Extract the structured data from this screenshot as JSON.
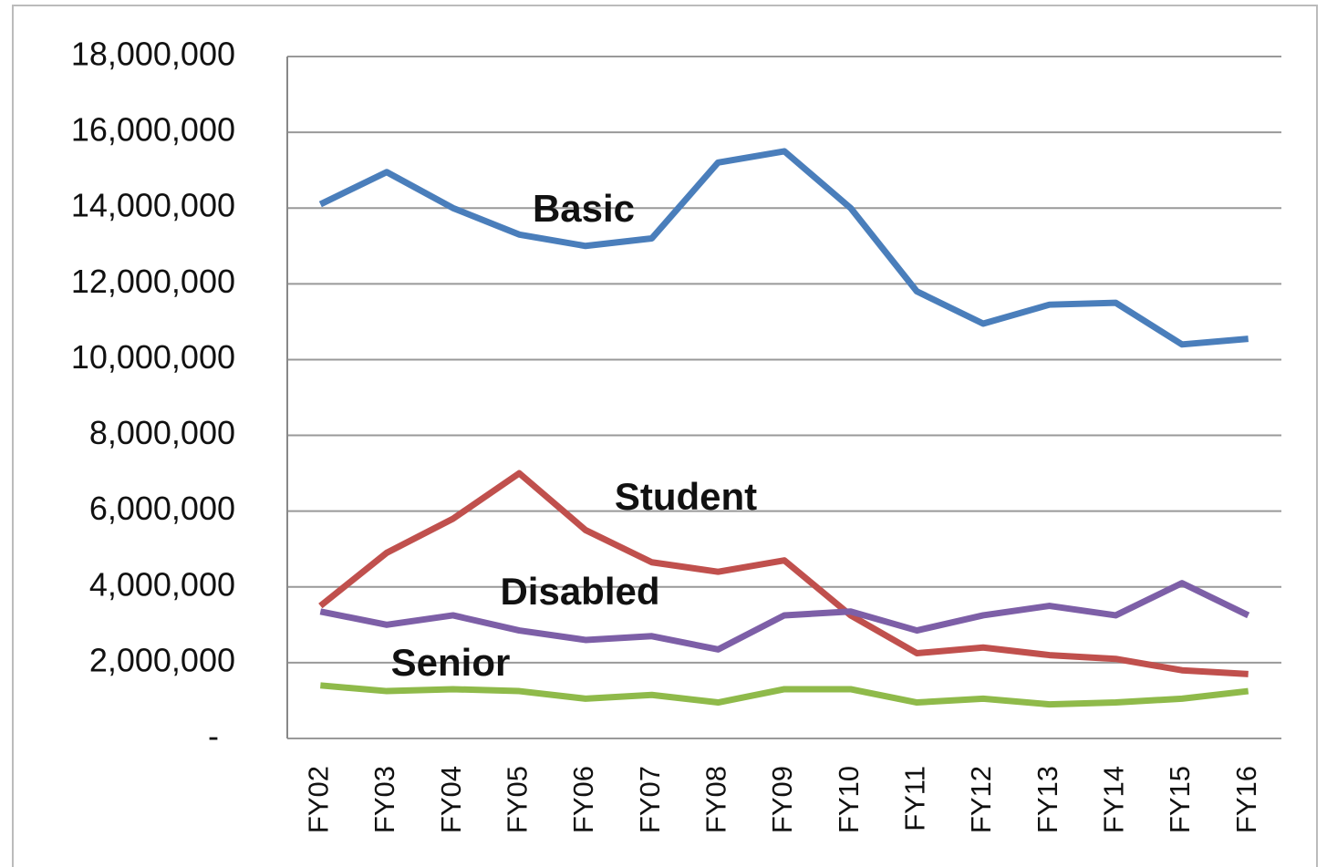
{
  "chart_data": {
    "type": "line",
    "categories": [
      "FY02",
      "FY03",
      "FY04",
      "FY05",
      "FY06",
      "FY07",
      "FY08",
      "FY09",
      "FY10",
      "FY11",
      "FY12",
      "FY13",
      "FY14",
      "FY15",
      "FY16"
    ],
    "series": [
      {
        "name": "Basic",
        "color": "#4a7ebb",
        "values": [
          14100000,
          14950000,
          14000000,
          13300000,
          13000000,
          13200000,
          15200000,
          15500000,
          14000000,
          11800000,
          10950000,
          11450000,
          11500000,
          10400000,
          10550000
        ]
      },
      {
        "name": "Student",
        "color": "#c0504d",
        "values": [
          3500000,
          4900000,
          5800000,
          7000000,
          5500000,
          4650000,
          4400000,
          4700000,
          3250000,
          2250000,
          2400000,
          2200000,
          2100000,
          1800000,
          1700000
        ]
      },
      {
        "name": "Disabled",
        "color": "#7d5fa7",
        "values": [
          3350000,
          3000000,
          3250000,
          2850000,
          2600000,
          2700000,
          2350000,
          3250000,
          3350000,
          2850000,
          3250000,
          3500000,
          3250000,
          4100000,
          3250000
        ]
      },
      {
        "name": "Senior",
        "color": "#8fba4a",
        "values": [
          1400000,
          1250000,
          1300000,
          1250000,
          1050000,
          1150000,
          950000,
          1300000,
          1300000,
          950000,
          1050000,
          900000,
          950000,
          1050000,
          1250000
        ]
      }
    ],
    "ylim": [
      0,
      18000000
    ],
    "yticks": [
      {
        "value": 0,
        "label": "-"
      },
      {
        "value": 2000000,
        "label": "2,000,000"
      },
      {
        "value": 4000000,
        "label": "4,000,000"
      },
      {
        "value": 6000000,
        "label": "6,000,000"
      },
      {
        "value": 8000000,
        "label": "8,000,000"
      },
      {
        "value": 10000000,
        "label": "10,000,000"
      },
      {
        "value": 12000000,
        "label": "12,000,000"
      },
      {
        "value": 14000000,
        "label": "14,000,000"
      },
      {
        "value": 16000000,
        "label": "16,000,000"
      },
      {
        "value": 18000000,
        "label": "18,000,000"
      }
    ],
    "grid": true
  }
}
